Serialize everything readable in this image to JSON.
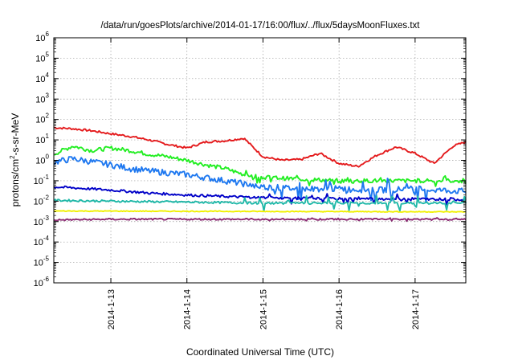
{
  "chart_data": {
    "type": "line",
    "title": "/data/run/goesPlots/archive/2014-01-17/16:00/flux/../flux/5daysMoonFluxes.txt",
    "xlabel": "Coordinated Universal Time (UTC)",
    "ylabel": "protons/cm2-s-sr-MeV",
    "ylabel_parts": [
      "protons/cm",
      "2",
      "-s-sr-MeV"
    ],
    "yscale": "log",
    "ylim": [
      -6,
      6
    ],
    "xlim": [
      "2014-01-12 06:00",
      "2014-01-17 16:00"
    ],
    "grid": true,
    "x_ticks": [
      {
        "label": "2014-1-13",
        "day": 13
      },
      {
        "label": "2014-1-14",
        "day": 14
      },
      {
        "label": "2014-1-15",
        "day": 15
      },
      {
        "label": "2014-1-16",
        "day": 16
      },
      {
        "label": "2014-1-17",
        "day": 17
      }
    ],
    "y_ticks": [
      {
        "base": "10",
        "exp": "6"
      },
      {
        "base": "10",
        "exp": "5"
      },
      {
        "base": "10",
        "exp": "4"
      },
      {
        "base": "10",
        "exp": "3"
      },
      {
        "base": "10",
        "exp": "2"
      },
      {
        "base": "10",
        "exp": "1"
      },
      {
        "base": "10",
        "exp": "0"
      },
      {
        "base": "10",
        "exp": "-1"
      },
      {
        "base": "10",
        "exp": "-2"
      },
      {
        "base": "10",
        "exp": "-3"
      },
      {
        "base": "10",
        "exp": "-4"
      },
      {
        "base": "10",
        "exp": "-5"
      },
      {
        "base": "10",
        "exp": "-6"
      }
    ],
    "series": [
      {
        "color": "#e41a1c",
        "noise": 0.05,
        "spikes": 0,
        "points": [
          [
            "2014-01-12 06:00",
            40
          ],
          [
            "2014-01-12 12:00",
            35
          ],
          [
            "2014-01-12 18:00",
            28
          ],
          [
            "2014-01-13 00:00",
            20
          ],
          [
            "2014-01-13 06:00",
            15
          ],
          [
            "2014-01-13 12:00",
            10
          ],
          [
            "2014-01-13 18:00",
            6
          ],
          [
            "2014-01-14 00:00",
            4
          ],
          [
            "2014-01-14 06:00",
            8
          ],
          [
            "2014-01-14 12:00",
            9
          ],
          [
            "2014-01-14 18:00",
            12
          ],
          [
            "2014-01-15 00:00",
            1.5
          ],
          [
            "2014-01-15 06:00",
            1
          ],
          [
            "2014-01-15 12:00",
            1.1
          ],
          [
            "2014-01-15 18:00",
            2.2
          ],
          [
            "2014-01-16 00:00",
            0.7
          ],
          [
            "2014-01-16 06:00",
            0.5
          ],
          [
            "2014-01-16 12:00",
            1.8
          ],
          [
            "2014-01-16 18:00",
            4.5
          ],
          [
            "2014-01-17 00:00",
            2.2
          ],
          [
            "2014-01-17 06:00",
            0.7
          ],
          [
            "2014-01-17 12:00",
            5
          ],
          [
            "2014-01-17 16:00",
            8
          ]
        ]
      },
      {
        "color": "#22ee22",
        "noise": 0.1,
        "spikes": 0.3,
        "points": [
          [
            "2014-01-12 06:00",
            2
          ],
          [
            "2014-01-12 12:00",
            5
          ],
          [
            "2014-01-12 18:00",
            3
          ],
          [
            "2014-01-13 00:00",
            4
          ],
          [
            "2014-01-13 06:00",
            3
          ],
          [
            "2014-01-13 12:00",
            2
          ],
          [
            "2014-01-13 18:00",
            1.5
          ],
          [
            "2014-01-14 00:00",
            1
          ],
          [
            "2014-01-14 06:00",
            0.6
          ],
          [
            "2014-01-14 12:00",
            0.4
          ],
          [
            "2014-01-14 18:00",
            0.2
          ],
          [
            "2014-01-15 00:00",
            0.15
          ],
          [
            "2014-01-15 12:00",
            0.12
          ],
          [
            "2014-01-16 00:00",
            0.1
          ],
          [
            "2014-01-16 12:00",
            0.1
          ],
          [
            "2014-01-17 00:00",
            0.1
          ],
          [
            "2014-01-17 12:00",
            0.1
          ],
          [
            "2014-01-17 16:00",
            0.09
          ]
        ]
      },
      {
        "color": "#1e78f0",
        "noise": 0.15,
        "spikes": 0.6,
        "points": [
          [
            "2014-01-12 06:00",
            0.8
          ],
          [
            "2014-01-12 12:00",
            1.2
          ],
          [
            "2014-01-13 00:00",
            0.6
          ],
          [
            "2014-01-13 06:00",
            0.4
          ],
          [
            "2014-01-13 12:00",
            0.3
          ],
          [
            "2014-01-14 00:00",
            0.2
          ],
          [
            "2014-01-14 12:00",
            0.1
          ],
          [
            "2014-01-15 00:00",
            0.05
          ],
          [
            "2014-01-15 12:00",
            0.04
          ],
          [
            "2014-01-16 00:00",
            0.04
          ],
          [
            "2014-01-16 12:00",
            0.035
          ],
          [
            "2014-01-17 00:00",
            0.04
          ],
          [
            "2014-01-17 16:00",
            0.03
          ]
        ]
      },
      {
        "color": "#0000c8",
        "noise": 0.06,
        "spikes": 0.25,
        "points": [
          [
            "2014-01-12 06:00",
            0.05
          ],
          [
            "2014-01-12 12:00",
            0.045
          ],
          [
            "2014-01-13 00:00",
            0.035
          ],
          [
            "2014-01-13 12:00",
            0.025
          ],
          [
            "2014-01-14 00:00",
            0.02
          ],
          [
            "2014-01-14 12:00",
            0.017
          ],
          [
            "2014-01-15 00:00",
            0.015
          ],
          [
            "2014-01-16 00:00",
            0.013
          ],
          [
            "2014-01-17 00:00",
            0.013
          ],
          [
            "2014-01-17 16:00",
            0.012
          ]
        ]
      },
      {
        "color": "#20b8a8",
        "noise": 0.05,
        "spikes": 0.4,
        "points": [
          [
            "2014-01-12 06:00",
            0.011
          ],
          [
            "2014-01-13 00:00",
            0.01
          ],
          [
            "2014-01-14 00:00",
            0.009
          ],
          [
            "2014-01-15 00:00",
            0.008
          ],
          [
            "2014-01-16 00:00",
            0.008
          ],
          [
            "2014-01-17 00:00",
            0.008
          ],
          [
            "2014-01-17 16:00",
            0.008
          ]
        ]
      },
      {
        "color": "#f0f000",
        "noise": 0.02,
        "spikes": 0,
        "points": [
          [
            "2014-01-12 06:00",
            0.0033
          ],
          [
            "2014-01-17 16:00",
            0.003
          ]
        ]
      },
      {
        "color": "#8b2a72",
        "noise": 0.04,
        "spikes": 0.05,
        "points": [
          [
            "2014-01-12 06:00",
            0.0012
          ],
          [
            "2014-01-13 00:00",
            0.0013
          ],
          [
            "2014-01-14 00:00",
            0.0013
          ],
          [
            "2014-01-15 00:00",
            0.0013
          ],
          [
            "2014-01-16 00:00",
            0.0013
          ],
          [
            "2014-01-17 00:00",
            0.0013
          ],
          [
            "2014-01-17 16:00",
            0.0013
          ]
        ]
      }
    ]
  }
}
